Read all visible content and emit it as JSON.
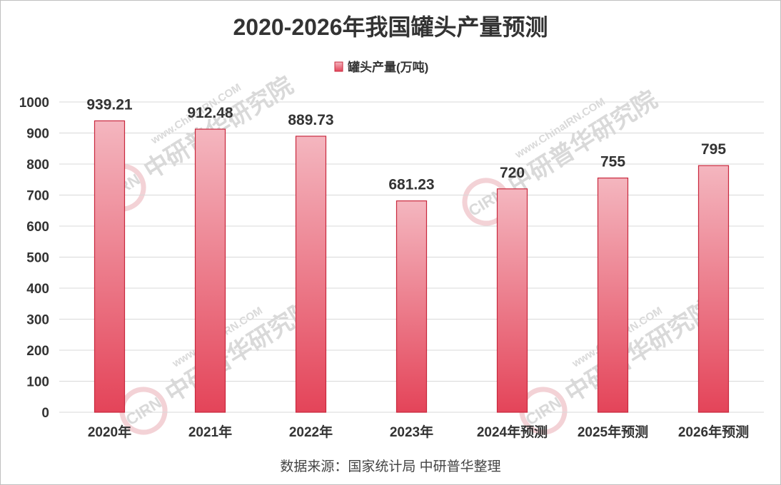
{
  "chart_data": {
    "type": "bar",
    "title": "2020-2026年我国罐头产量预测",
    "categories": [
      "2020年",
      "2021年",
      "2022年",
      "2023年",
      "2024年预测",
      "2025年预测",
      "2026年预测"
    ],
    "series": [
      {
        "name": "罐头产量(万吨)",
        "values": [
          939.21,
          912.48,
          889.73,
          681.23,
          720,
          755,
          795
        ]
      }
    ],
    "data_labels": [
      "939.21",
      "912.48",
      "889.73",
      "681.23",
      "720",
      "755",
      "795"
    ],
    "ylim": [
      0,
      1000
    ],
    "yticks": [
      0,
      100,
      200,
      300,
      400,
      500,
      600,
      700,
      800,
      900,
      1000
    ],
    "grid": true,
    "legend": "top-center",
    "colors": {
      "bar_top": "#f4b6bf",
      "bar_bottom": "#e44459",
      "bar_stroke": "#c8283d",
      "grid": "#d9d9d9"
    }
  },
  "source": "数据来源：国家统计局 中研普华整理",
  "watermark": {
    "logo": "CIRN",
    "brand": "中研普华研究院",
    "url": "www.ChinaIRN.COM"
  }
}
